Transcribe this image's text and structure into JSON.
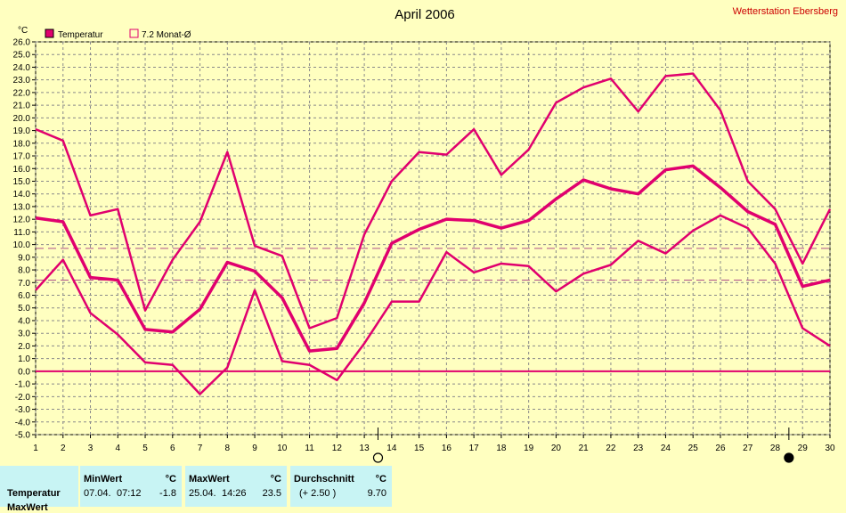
{
  "title": "April 2006",
  "station": "Wetterstation Ebersberg",
  "y_unit": "°C",
  "legend": [
    {
      "label": "Temperatur",
      "color": "#e0006e",
      "filled": true
    },
    {
      "label": "7.2 Monat-Ø",
      "color": "#e0006e",
      "filled": false
    }
  ],
  "chart_data": {
    "type": "line",
    "title": "April 2006",
    "ylabel": "°C",
    "xlabel": "",
    "x": [
      1,
      2,
      3,
      4,
      5,
      6,
      7,
      8,
      9,
      10,
      11,
      12,
      13,
      14,
      15,
      16,
      17,
      18,
      19,
      20,
      21,
      22,
      23,
      24,
      25,
      26,
      27,
      28,
      29,
      30
    ],
    "xlim": [
      1,
      30
    ],
    "ylim": [
      -5,
      26
    ],
    "y_ticks": [
      "-5.0",
      "-4.0",
      "-3.0",
      "-2.0",
      "-1.0",
      "0.0",
      "1.0",
      "2.0",
      "3.0",
      "4.0",
      "5.0",
      "6.0",
      "7.0",
      "8.0",
      "9.0",
      "10.0",
      "11.0",
      "12.0",
      "13.0",
      "14.0",
      "15.0",
      "16.0",
      "17.0",
      "18.0",
      "19.0",
      "20.0",
      "21.0",
      "22.0",
      "23.0",
      "24.0",
      "25.0",
      "26.0"
    ],
    "grid": true,
    "series": [
      {
        "key": "max",
        "values": [
          19.1,
          18.2,
          12.3,
          12.8,
          4.8,
          8.8,
          11.8,
          17.3,
          9.9,
          9.1,
          3.4,
          4.2,
          10.8,
          15.0,
          17.3,
          17.1,
          19.1,
          15.5,
          17.5,
          21.2,
          22.4,
          23.1,
          20.5,
          23.3,
          23.5,
          20.6,
          15.0,
          12.8,
          8.5,
          12.8
        ],
        "color": "#e0006e"
      },
      {
        "key": "avg",
        "values": [
          12.1,
          11.8,
          7.4,
          7.2,
          3.3,
          3.1,
          4.9,
          8.6,
          7.9,
          5.8,
          1.6,
          1.8,
          5.4,
          10.1,
          11.2,
          12.0,
          11.9,
          11.3,
          11.9,
          13.6,
          15.1,
          14.4,
          14.0,
          15.9,
          16.2,
          14.5,
          12.6,
          11.6,
          6.7,
          7.2
        ],
        "color": "#e0006e"
      },
      {
        "key": "min",
        "values": [
          6.4,
          8.8,
          4.6,
          2.9,
          0.7,
          0.5,
          -1.8,
          0.3,
          6.4,
          0.8,
          0.5,
          -0.7,
          2.2,
          5.5,
          5.5,
          9.4,
          7.8,
          8.5,
          8.3,
          6.3,
          7.7,
          8.4,
          10.3,
          9.3,
          11.1,
          12.3,
          11.3,
          8.5,
          3.4,
          2.0
        ],
        "color": "#e0006e"
      }
    ],
    "reference_lines": [
      {
        "y": 0.0,
        "style": "solid"
      },
      {
        "y": 7.2,
        "style": "dashed"
      },
      {
        "y": 9.7,
        "style": "dashed"
      }
    ],
    "moon_markers": [
      {
        "day": 13,
        "phase": "full"
      },
      {
        "day": 28,
        "phase": "new"
      }
    ]
  },
  "footer": {
    "row_label": "Temperatur",
    "min_header": "MinWert",
    "min_date": "07.04.",
    "min_time": "07:12",
    "min_value": "-1.8",
    "max_header": "MaxWert",
    "max_date": "25.04.",
    "max_time": "14:26",
    "max_value": "23.5",
    "avg_header": "Durchschnitt",
    "avg_diff": "(+ 2.50 )",
    "avg_value": "9.70",
    "unit": "°C",
    "row2_label": "MaxWert"
  }
}
